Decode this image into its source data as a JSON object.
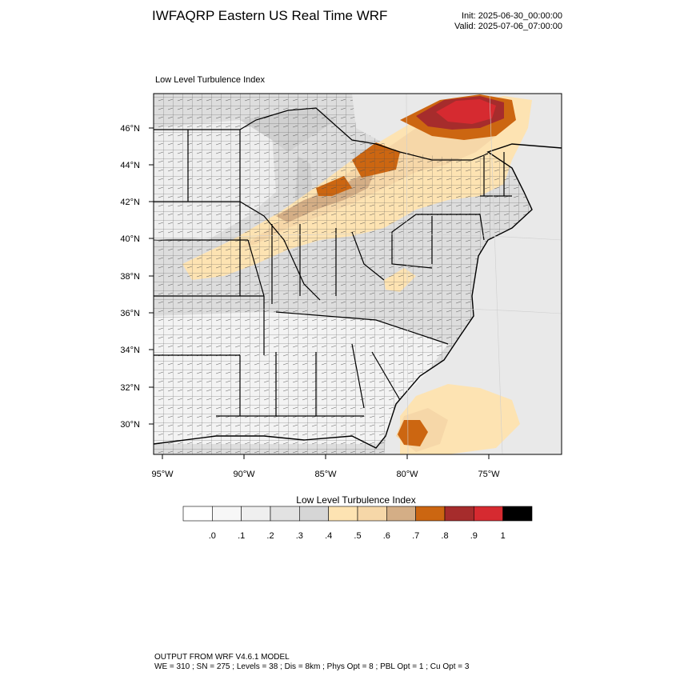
{
  "header": {
    "title": "IWFAQRP Eastern US Real Time WRF",
    "init_time": "Init: 2025-06-30_00:00:00",
    "valid_time": "Valid: 2025-07-06_07:00:00"
  },
  "plot": {
    "label": "Low Level Turbulence Index",
    "lat_ticks": [
      "46°N",
      "44°N",
      "42°N",
      "40°N",
      "38°N",
      "36°N",
      "34°N",
      "32°N",
      "30°N"
    ],
    "lon_ticks": [
      "95°W",
      "90°W",
      "85°W",
      "80°W",
      "75°W"
    ]
  },
  "colorbar": {
    "title": "Low Level Turbulence Index",
    "levels": [
      ".0",
      ".1",
      ".2",
      ".3",
      ".4",
      ".5",
      ".6",
      ".7",
      ".8",
      ".9",
      "1"
    ],
    "colors": [
      "#ffffff",
      "#f7f7f7",
      "#efefef",
      "#e2e2e2",
      "#d6d6d6",
      "#fde3b2",
      "#f6d7a8",
      "#d4ae86",
      "#cc6611",
      "#a62c2c",
      "#d62a30",
      "#000000"
    ]
  },
  "footer": {
    "line1": "OUTPUT FROM WRF V4.6.1 MODEL",
    "line2": "WE = 310 ; SN = 275 ; Levels = 38 ; Dis = 8km ; Phys Opt = 8 ; PBL Opt = 1 ; Cu Opt = 3"
  }
}
